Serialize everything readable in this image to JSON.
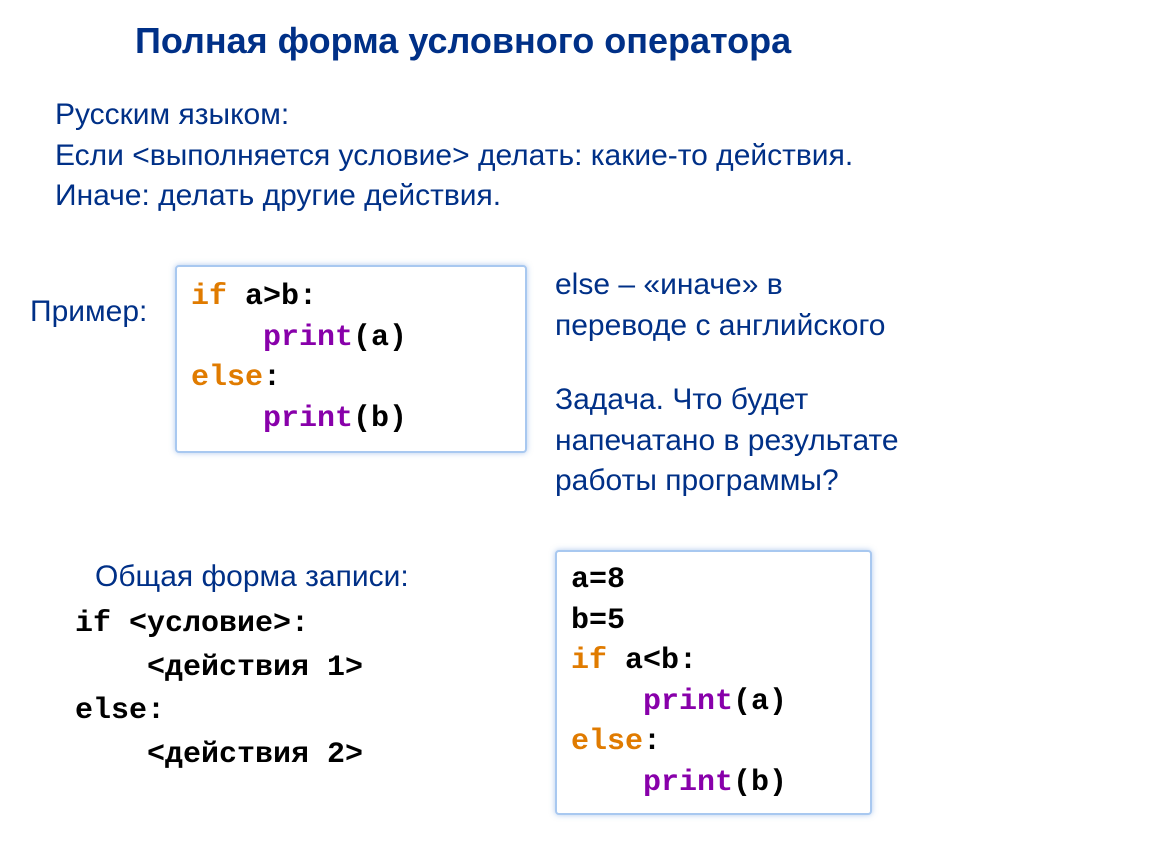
{
  "title": "Полная форма условного оператора",
  "intro_line1": "Русским языком:",
  "intro_line2": "Если <выполняется условие> делать: какие-то действия.",
  "intro_line3": "Иначе: делать другие действия.",
  "example_label": "Пример:",
  "code1": {
    "l1_kw": "if",
    "l1_rest": " a>b:",
    "l2_indent": "    ",
    "l2_fn": "print",
    "l2_arg": "(a)",
    "l3_kw": "else",
    "l3_rest": ":",
    "l4_indent": "    ",
    "l4_fn": "print",
    "l4_arg": "(b)"
  },
  "else_note_l1": "else – «иначе» в",
  "else_note_l2": "переводе с английского",
  "task_l1": "Задача. Что будет",
  "task_l2": "напечатано в результате",
  "task_l3": "работы программы?",
  "general_label": "Общая форма записи:",
  "general_code": "if <условие>:\n    <действия 1>\nelse:\n    <действия 2>",
  "code2": {
    "l1": "a=8",
    "l2": "b=5",
    "l3_kw": "if",
    "l3_rest": " a<b:",
    "l4_indent": "    ",
    "l4_fn": "print",
    "l4_arg": "(a)",
    "l5_kw": "else",
    "l5_rest": ":",
    "l6_indent": "    ",
    "l6_fn": "print",
    "l6_arg": "(b)"
  },
  "colors": {
    "title": "#003087",
    "body_text": "#003087",
    "keyword": "#e07b00",
    "function": "#8800aa",
    "code_text": "#000000",
    "box_border": "#a8c8f0",
    "background": "#ffffff"
  },
  "fonts": {
    "body": "Arial",
    "code": "Courier New",
    "title_size_pt": 36,
    "body_size_pt": 30,
    "code_size_pt": 30
  }
}
